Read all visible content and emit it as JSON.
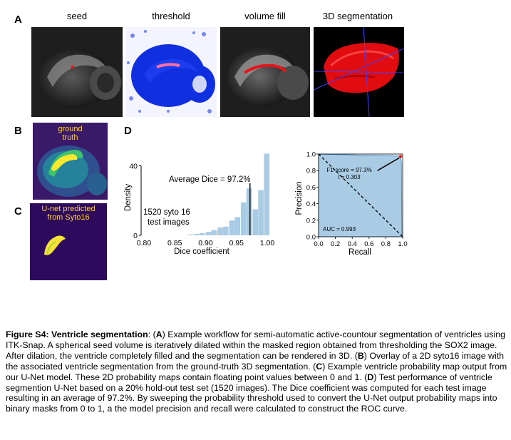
{
  "panels": {
    "A": {
      "letter": "A",
      "titles": [
        "seed",
        "threshold",
        "volume fill",
        "3D segmentation"
      ]
    },
    "B": {
      "letter": "B",
      "label_line1": "ground",
      "label_line2": "truth"
    },
    "C": {
      "letter": "C",
      "label_line1": "U-net predicted",
      "label_line2": "from Syto16"
    },
    "D": {
      "letter": "D"
    }
  },
  "colors": {
    "histogram_bar": "#a9cbe3",
    "roc_fill": "#a9cbe3",
    "label_yellow": "#ffd23c",
    "seg_red": "#e8141c",
    "threshold_blue": "#1030e0",
    "viridis_bg": "#2a0a5a"
  },
  "chart_data": [
    {
      "type": "bar",
      "name_hint": "dice-histogram",
      "xlabel": "Dice coefficient",
      "ylabel": "Density",
      "xlim": [
        0.8,
        1.0
      ],
      "ylim": [
        0,
        48
      ],
      "xticks": [
        "0.80",
        "0.85",
        "0.90",
        "0.95",
        "1.00"
      ],
      "yticks": [
        "0",
        "40"
      ],
      "bin_width": 0.0095,
      "bins": [
        {
          "x": 0.876,
          "y": 0.5
        },
        {
          "x": 0.886,
          "y": 0.8
        },
        {
          "x": 0.895,
          "y": 1.3
        },
        {
          "x": 0.905,
          "y": 2.0
        },
        {
          "x": 0.914,
          "y": 3.0
        },
        {
          "x": 0.924,
          "y": 4.5
        },
        {
          "x": 0.933,
          "y": 5.0
        },
        {
          "x": 0.943,
          "y": 8.5
        },
        {
          "x": 0.952,
          "y": 10.5
        },
        {
          "x": 0.962,
          "y": 19.0
        },
        {
          "x": 0.971,
          "y": 27.0
        },
        {
          "x": 0.981,
          "y": 15.0
        },
        {
          "x": 0.99,
          "y": 26.0
        },
        {
          "x": 0.9995,
          "y": 47.0
        }
      ],
      "mean_line_x": 0.972,
      "annotation_mean": "Average Dice = 97.2%",
      "annotation_count_line1": "1520 syto 16",
      "annotation_count_line2": "test images"
    },
    {
      "type": "area",
      "name_hint": "roc-curve",
      "xlabel": "Recall",
      "ylabel": "Precision",
      "xlim": [
        0,
        1
      ],
      "ylim": [
        0,
        1
      ],
      "xticks": [
        "0.0",
        "0.2",
        "0.4",
        "0.6",
        "0.8",
        "1.0"
      ],
      "yticks": [
        "0.0",
        "0.2",
        "0.4",
        "0.6",
        "0.8",
        "1.0"
      ],
      "curve": [
        {
          "x": 0.0,
          "y": 1.0
        },
        {
          "x": 0.97,
          "y": 0.975
        },
        {
          "x": 0.985,
          "y": 0.9
        },
        {
          "x": 0.99,
          "y": 0.0
        }
      ],
      "diagonal": [
        [
          0,
          1
        ],
        [
          1,
          0
        ]
      ],
      "highlight_point": {
        "x": 0.975,
        "y": 0.97
      },
      "annotation_f1": "F1-score = 97.3%",
      "annotation_t": "t = 0.303",
      "annotation_auc": "AUC = 0.993"
    }
  ],
  "caption": {
    "title": "Figure S4: Ventricle segmentation",
    "body_parts": [
      ": (",
      "A",
      ") Example workflow for semi-automatic active-countour segmentation of ventricles using ITK-Snap. A spherical seed volume is iteratively dilated within the masked region obtained from thresholding the SOX2 image. After dilation, the ventricle completely filled and the segmentation can be rendered in 3D. (",
      "B",
      ") Overlay of a 2D syto16 image with the associated ventricle segmentation from the ground-truth 3D segmentation. (",
      "C",
      ") Example ventricle probability map output from our U-Net model. These 2D probability maps contain floating point values between 0 and 1. (",
      "D",
      ") Test performance of ventricle segmention U-Net based on a 20% hold-out test set (1520 images). The Dice coefficient was computed for each test image resulting in an average of 97.2%. By sweeping the probability threshold used to convert the U-Net output probability maps into binary masks from 0 to 1, a the model precision and recall were calculated to construct the ROC curve."
    ]
  }
}
